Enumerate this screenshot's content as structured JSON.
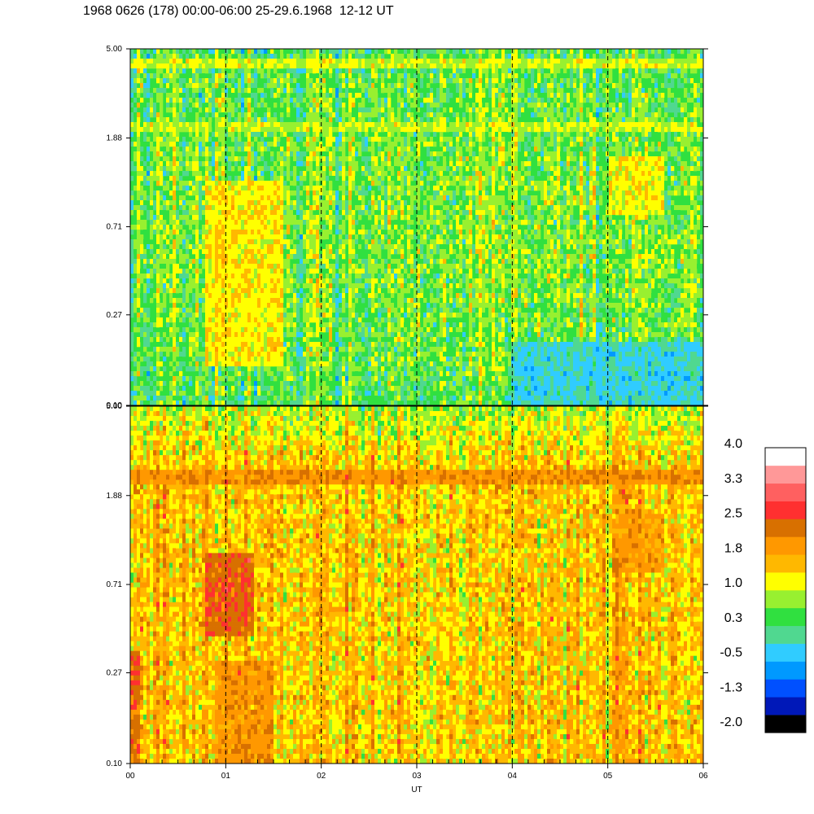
{
  "title": "1968 0626 (178) 00:00-06:00 25-29.6.1968  12-12 UT",
  "chart_data": [
    {
      "type": "heatmap",
      "panel": "top",
      "x_ticks": [
        "00",
        "01",
        "02",
        "03",
        "04",
        "05",
        "06"
      ],
      "y_ticks": [
        "0.10",
        "0.27",
        "0.71",
        "1.88",
        "5.00"
      ],
      "y_scale": "log",
      "ylim": [
        0.1,
        5.0
      ],
      "xlim": [
        0,
        6
      ],
      "grid": "dashed vertical lines at each hour",
      "dominant_level": 0.6,
      "features": [
        {
          "description": "yellow band",
          "y": 4.3,
          "level": 1.2
        },
        {
          "description": "yellow band",
          "y": 2.1,
          "level": 1.1
        },
        {
          "description": "elevated region",
          "x": [
            0.8,
            1.6
          ],
          "y": [
            0.15,
            1.2
          ],
          "level": 1.5
        },
        {
          "description": "elevated region",
          "x": [
            5.0,
            5.6
          ],
          "y": [
            0.8,
            1.5
          ],
          "level": 1.4
        },
        {
          "description": "low region",
          "x": [
            4.0,
            6.0
          ],
          "y": [
            0.1,
            0.2
          ],
          "level": -0.4
        }
      ]
    },
    {
      "type": "heatmap",
      "panel": "bottom",
      "x_ticks": [
        "00",
        "01",
        "02",
        "03",
        "04",
        "05",
        "06"
      ],
      "xlabel": "UT",
      "y_ticks": [
        "0.10",
        "0.27",
        "0.71",
        "1.88",
        "5.00"
      ],
      "y_scale": "log",
      "ylim": [
        0.1,
        5.0
      ],
      "xlim": [
        0,
        6
      ],
      "grid": "dashed vertical lines at each hour",
      "dominant_level": 1.5,
      "features": [
        {
          "description": "dark orange band",
          "y": 2.3,
          "level": 2.2
        },
        {
          "description": "red region",
          "x": [
            0.8,
            1.3
          ],
          "y": [
            0.4,
            1.0
          ],
          "level": 2.7
        },
        {
          "description": "dark orange region",
          "x": [
            0.9,
            1.5
          ],
          "y": [
            0.1,
            0.3
          ],
          "level": 2.1
        },
        {
          "description": "elevated region",
          "x": [
            5.1,
            5.6
          ],
          "y": [
            0.8,
            1.5
          ],
          "level": 2.0
        },
        {
          "description": "red edge",
          "x": [
            0.0,
            0.1
          ],
          "y": [
            0.1,
            0.35
          ],
          "level": 2.6
        }
      ]
    }
  ],
  "colorbar": {
    "labels": [
      "4.0",
      "3.3",
      "2.5",
      "1.8",
      "1.0",
      "0.3",
      "-0.5",
      "-1.3",
      "-2.0"
    ],
    "colors": [
      "#000000",
      "#0018b8",
      "#0050ff",
      "#0099ff",
      "#30ccff",
      "#50d890",
      "#30e040",
      "#98f030",
      "#ffff00",
      "#ffb800",
      "#ff9800",
      "#d87000",
      "#ff3030",
      "#ff6060",
      "#ff9898",
      "#ffffff"
    ]
  }
}
